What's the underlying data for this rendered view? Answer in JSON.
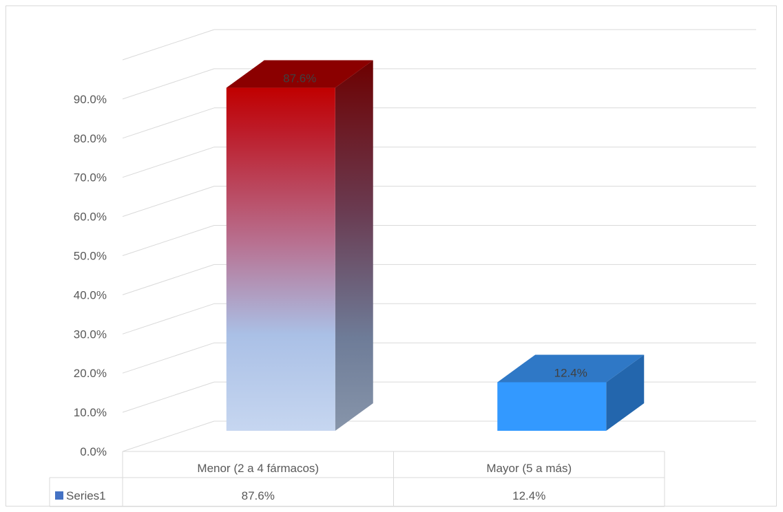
{
  "chart_data": {
    "type": "bar",
    "categories": [
      "Menor (2 a 4 fármacos)",
      "Mayor (5 a más)"
    ],
    "series": [
      {
        "name": "Series1",
        "values": [
          0.876,
          0.124
        ],
        "labels": [
          "87.6%",
          "12.4%"
        ]
      }
    ],
    "ylim": [
      0,
      0.9
    ],
    "yticks": [
      "0.0%",
      "10.0%",
      "20.0%",
      "30.0%",
      "40.0%",
      "50.0%",
      "60.0%",
      "70.0%",
      "80.0%",
      "90.0%"
    ],
    "grid": true,
    "legend": "data-table",
    "data_table": {
      "legend_label": "Series1",
      "cells": [
        "87.6%",
        "12.4%"
      ]
    },
    "colors": {
      "bar1_top": "#c00000",
      "bar1_bottom": "#c5d5ef",
      "bar2": "#3399ff",
      "legend_key": "#4472c4",
      "grid": "#d9d9d9",
      "text": "#595959"
    }
  }
}
